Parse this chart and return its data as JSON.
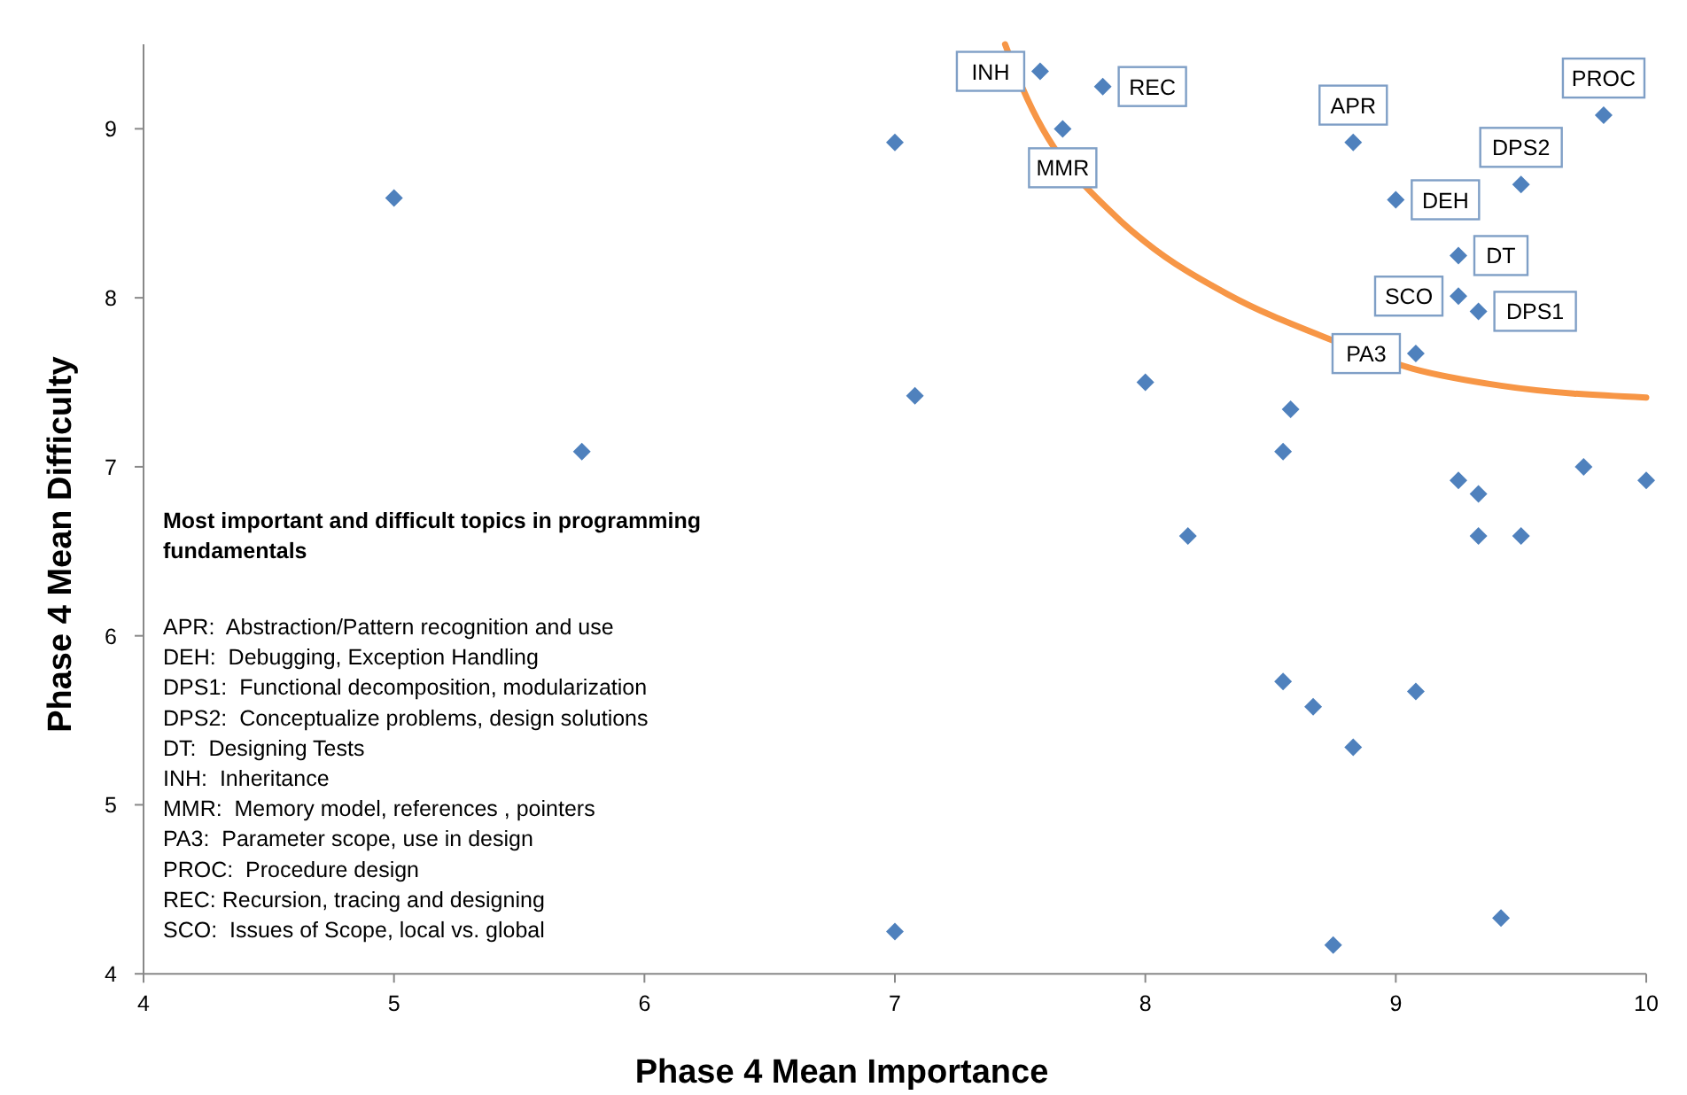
{
  "chart_data": {
    "type": "scatter",
    "xlabel": "Phase 4 Mean Importance",
    "ylabel": "Phase 4 Mean Difficulty",
    "xlim": [
      4,
      10
    ],
    "ylim": [
      4,
      9.5
    ],
    "xticks": [
      4,
      5,
      6,
      7,
      8,
      9,
      10
    ],
    "yticks": [
      4,
      5,
      6,
      7,
      8,
      9
    ],
    "grid": false,
    "marker": "diamond",
    "series": [
      {
        "color": "#4f81bd",
        "x": [
          7.58,
          7.83,
          7.67,
          7.0,
          8.83,
          9.83,
          9.5,
          9.0,
          9.25,
          9.25,
          9.33,
          9.08,
          7.08,
          8.0,
          8.58,
          8.55,
          9.25,
          9.33,
          9.75,
          10.0,
          8.17,
          9.33,
          9.5,
          8.55,
          8.67,
          9.08,
          8.83,
          7.0,
          8.75,
          9.42,
          5.0,
          5.75
        ],
        "values": [
          9.34,
          9.25,
          9.0,
          8.92,
          8.92,
          9.08,
          8.67,
          8.58,
          8.25,
          8.01,
          7.92,
          7.67,
          7.42,
          7.5,
          7.34,
          7.09,
          6.92,
          6.84,
          7.0,
          6.92,
          6.59,
          6.59,
          6.59,
          5.73,
          5.58,
          5.67,
          5.34,
          4.25,
          4.17,
          4.33,
          8.59,
          7.09
        ]
      },
      {
        "type": "line",
        "color": "#f79646",
        "line_style": "solid",
        "marker": "none",
        "x": [
          7.44,
          7.51,
          7.89,
          8.0,
          8.33,
          8.71,
          9.07,
          9.42,
          10.0
        ],
        "values": [
          9.5,
          9.24,
          8.47,
          8.33,
          8.02,
          7.77,
          7.58,
          7.48,
          7.41
        ]
      }
    ],
    "annotations": [
      {
        "text": "INH",
        "x": 7.58,
        "y": 9.34
      },
      {
        "text": "REC",
        "x": 7.83,
        "y": 9.25
      },
      {
        "text": "MMR",
        "x": 7.67,
        "y": 9.0
      },
      {
        "text": "APR",
        "x": 8.83,
        "y": 8.92
      },
      {
        "text": "PROC",
        "x": 9.83,
        "y": 9.08
      },
      {
        "text": "DPS2",
        "x": 9.5,
        "y": 8.67
      },
      {
        "text": "DEH",
        "x": 9.0,
        "y": 8.58
      },
      {
        "text": "DT",
        "x": 9.25,
        "y": 8.25
      },
      {
        "text": "SCO",
        "x": 9.25,
        "y": 8.01
      },
      {
        "text": "DPS1",
        "x": 9.33,
        "y": 7.92
      },
      {
        "text": "PA3",
        "x": 9.08,
        "y": 7.67
      },
      "Most important and difficult topics in programming fundamentals",
      "APR:  Abstraction/Pattern recognition and use",
      "DEH:  Debugging, Exception Handling",
      "DPS1:  Functional decomposition, modularization",
      "DPS2:  Conceptualize problems, design solutions",
      "DT:  Designing Tests",
      "INH:  Inheritance",
      "MMR:  Memory model, references , pointers",
      "PA3:  Parameter scope, use in design",
      "PROC:  Procedure design",
      "REC: Recursion, tracing and designing",
      "SCO:  Issues of Scope, local vs. global"
    ]
  }
}
